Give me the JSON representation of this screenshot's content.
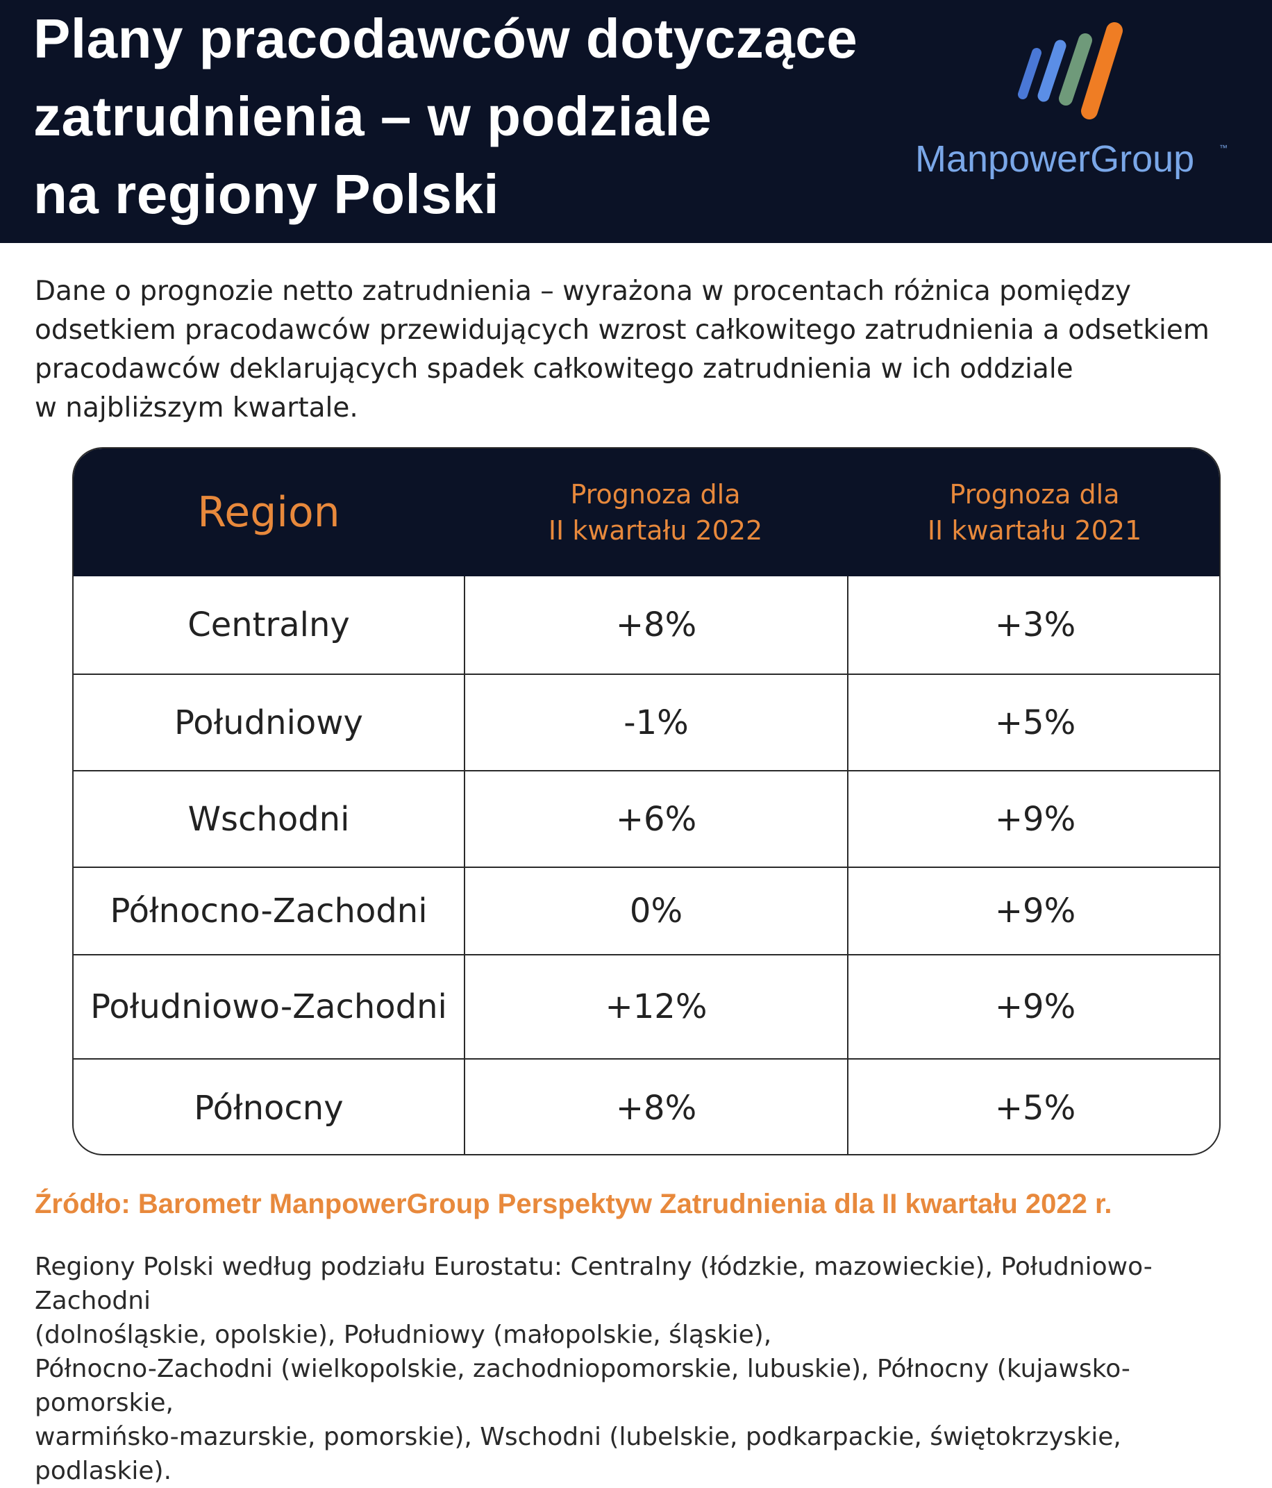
{
  "header": {
    "title_lines": [
      "Plany pracodawców dotyczące",
      "zatrudnienia – w podziale",
      "na regiony Polski"
    ],
    "logo_text": "ManpowerGroup",
    "logo_tm": "™",
    "colors": {
      "background": "#0b1226",
      "title": "#ffffff",
      "logo_text": "#7aa7e8",
      "accent": "#e8893c"
    }
  },
  "intro": {
    "lines": [
      "Dane o prognozie netto zatrudnienia – wyrażona w procentach różnica pomiędzy",
      "odsetkiem pracodawców przewidujących wzrost całkowitego zatrudnienia a odsetkiem",
      "pracodawców deklarujących spadek całkowitego zatrudnienia w ich oddziale",
      "w najbliższym kwartale."
    ]
  },
  "table": {
    "headers": {
      "region": "Region",
      "q2_2022": [
        "Prognoza dla",
        "II kwartału 2022"
      ],
      "q2_2021": [
        "Prognoza dla",
        "II kwartału 2021"
      ]
    },
    "rows": [
      {
        "region": "Centralny",
        "q2_2022": "+8%",
        "q2_2021": "+3%"
      },
      {
        "region": "Południowy",
        "q2_2022": "-1%",
        "q2_2021": "+5%"
      },
      {
        "region": "Wschodni",
        "q2_2022": "+6%",
        "q2_2021": "+9%"
      },
      {
        "region": "Północno-Zachodni",
        "q2_2022": "0%",
        "q2_2021": "+9%"
      },
      {
        "region": "Południowo-Zachodni",
        "q2_2022": "+12%",
        "q2_2021": "+9%"
      },
      {
        "region": "Północny",
        "q2_2022": "+8%",
        "q2_2021": "+5%"
      }
    ]
  },
  "source": "Źródło: Barometr ManpowerGroup Perspektyw Zatrudnienia dla II kwartału 2022 r.",
  "regions_note": {
    "lines": [
      "Regiony Polski według podziału Eurostatu: Centralny (łódzkie, mazowieckie), Południowo-Zachodni",
      "(dolnośląskie, opolskie), Południowy (małopolskie, śląskie),",
      "Północno-Zachodni (wielkopolskie, zachodniopomorskie, lubuskie), Północny (kujawsko-pomorskie,",
      "warmińsko-mazurskie, pomorskie), Wschodni (lubelskie, podkarpackie, świętokrzyskie, podlaskie)."
    ]
  }
}
